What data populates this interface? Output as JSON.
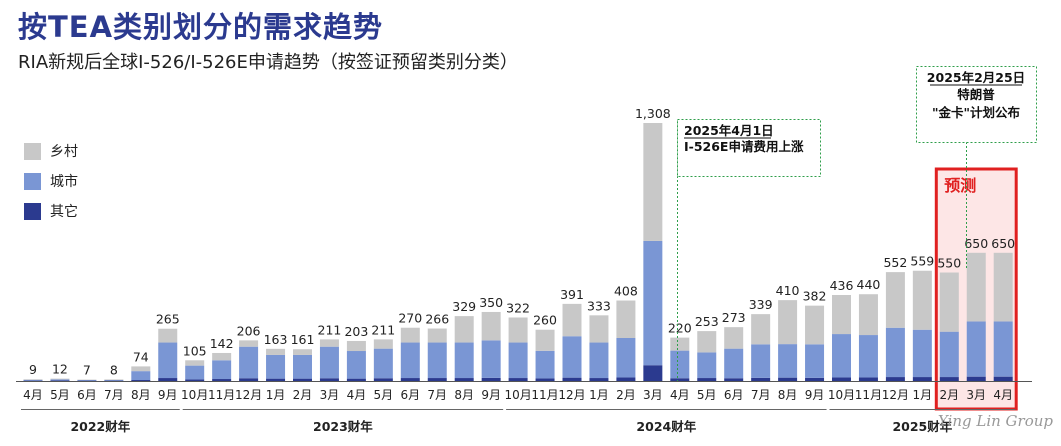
{
  "title": "按TEA类别划分的需求趋势",
  "subtitle": "RIA新规后全球I-526/I-526E申请趋势（按签证预留类别分类）",
  "watermark": "Ying Lin Group",
  "forecast_label": "预测",
  "colors": {
    "rural": "#c8c8c8",
    "urban": "#7a96d4",
    "other": "#2b3a8f",
    "forecast": "#e02020",
    "annotation": "#2e9e4a"
  },
  "legend": [
    {
      "name": "乡村",
      "color": "#c8c8c8"
    },
    {
      "name": "城市",
      "color": "#7a96d4"
    },
    {
      "name": "其它",
      "color": "#2b3a8f"
    }
  ],
  "annotations": [
    {
      "title": "2025年4月1日",
      "line2": "I-526E申请费用上涨"
    },
    {
      "title": "2025年2月25日",
      "line2": "特朗普",
      "line3": "\"金卡\"计划公布"
    }
  ],
  "chart_data": {
    "type": "bar",
    "stacked": true,
    "categories": [
      "4月",
      "5月",
      "6月",
      "7月",
      "8月",
      "9月",
      "10月",
      "11月",
      "12月",
      "1月",
      "2月",
      "3月",
      "4月",
      "5月",
      "6月",
      "7月",
      "8月",
      "9月",
      "10月",
      "11月",
      "12月",
      "1月",
      "2月",
      "3月",
      "4月",
      "5月",
      "6月",
      "7月",
      "8月",
      "9月",
      "10月",
      "11月",
      "12月",
      "1月",
      "2月",
      "3月",
      "4月"
    ],
    "totals": [
      9,
      12,
      7,
      8,
      74,
      265,
      105,
      142,
      206,
      163,
      161,
      211,
      203,
      211,
      270,
      266,
      329,
      350,
      322,
      260,
      391,
      333,
      408,
      1308,
      220,
      253,
      273,
      339,
      410,
      382,
      436,
      440,
      552,
      559,
      550,
      650,
      650
    ],
    "series": [
      {
        "name": "其它",
        "values": [
          2,
          3,
          2,
          2,
          5,
          15,
          8,
          10,
          14,
          12,
          12,
          14,
          12,
          14,
          15,
          15,
          15,
          16,
          15,
          13,
          17,
          15,
          18,
          80,
          14,
          15,
          14,
          16,
          17,
          16,
          18,
          18,
          20,
          20,
          20,
          22,
          22
        ]
      },
      {
        "name": "城市",
        "values": [
          4,
          5,
          3,
          3,
          45,
          180,
          70,
          95,
          160,
          120,
          120,
          160,
          140,
          150,
          180,
          180,
          180,
          190,
          180,
          140,
          210,
          180,
          200,
          630,
          140,
          130,
          150,
          170,
          170,
          170,
          220,
          215,
          250,
          240,
          230,
          280,
          280
        ]
      },
      {
        "name": "乡村",
        "values": [
          3,
          4,
          2,
          3,
          24,
          70,
          27,
          37,
          32,
          31,
          29,
          37,
          51,
          47,
          75,
          71,
          134,
          144,
          127,
          107,
          164,
          138,
          190,
          598,
          66,
          108,
          109,
          153,
          223,
          196,
          198,
          207,
          282,
          299,
          300,
          348,
          348
        ]
      }
    ],
    "fiscal_years": [
      {
        "label": "2022财年",
        "start": 0,
        "end": 5
      },
      {
        "label": "2023财年",
        "start": 6,
        "end": 17
      },
      {
        "label": "2024财年",
        "start": 18,
        "end": 29
      },
      {
        "label": "2025财年",
        "start": 30,
        "end": 36
      }
    ],
    "forecast_range": [
      34,
      36
    ]
  }
}
